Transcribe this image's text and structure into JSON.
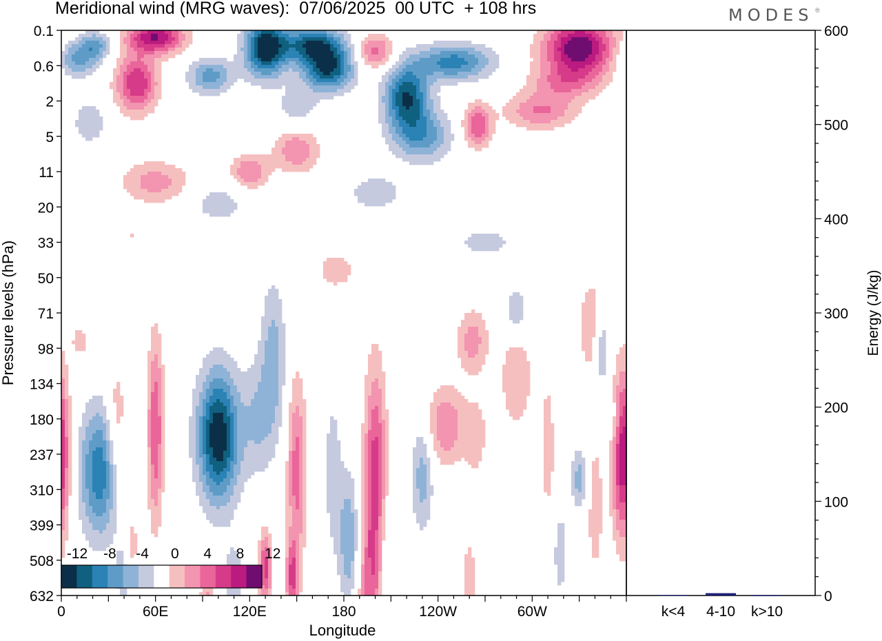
{
  "header": {
    "title": "Meridional wind (MRG waves):  07/06/2025  00 UTC  + 108 hrs",
    "brand": "MODES",
    "brand_mark": "®"
  },
  "chart_data": [
    {
      "type": "heatmap",
      "title": "Meridional wind (MRG waves):  07/06/2025  00 UTC  + 108 hrs",
      "xlabel": "Longitude",
      "ylabel": "Pressure levels (hPa)",
      "x_ticks": [
        "0",
        "60E",
        "120E",
        "180",
        "120W",
        "60W"
      ],
      "x_tick_degrees": [
        0,
        60,
        120,
        180,
        240,
        300
      ],
      "xlim": [
        0,
        360
      ],
      "y_ticks": [
        "0.1",
        "0.6",
        "2",
        "5",
        "11",
        "20",
        "33",
        "50",
        "71",
        "98",
        "134",
        "180",
        "237",
        "310",
        "399",
        "508",
        "632"
      ],
      "y_axis": "pressure levels (hPa), top to bottom",
      "colorbar": {
        "labels": [
          "-12",
          "-8",
          "-4",
          "0",
          "4",
          "8",
          "12"
        ],
        "levels": [
          -14,
          -12,
          -10,
          -8,
          -6,
          -4,
          -2,
          2,
          4,
          6,
          8,
          10,
          12,
          14
        ],
        "colors": [
          "#0c2f49",
          "#10607f",
          "#2a82b5",
          "#5e9cc7",
          "#8fb3d7",
          "#c6cadf",
          "#ffffff",
          "#f6bfbf",
          "#f394b0",
          "#ea6599",
          "#d63b89",
          "#bb1a80",
          "#700d70"
        ],
        "placement": "bottom-left inset"
      },
      "features": [
        {
          "kind": "maximum",
          "lon": 48,
          "level": "0.6-2",
          "sign": "positive",
          "peak": 10
        },
        {
          "kind": "maximum",
          "lon": 330,
          "level": "0.1-0.6",
          "sign": "positive",
          "peak": 14
        },
        {
          "kind": "minimum",
          "lon": 130,
          "level": "0.1-0.6",
          "sign": "negative",
          "peak": -14
        },
        {
          "kind": "minimum",
          "lon": 100,
          "level": "134-310",
          "sign": "negative",
          "peak": -14
        },
        {
          "kind": "minimum",
          "lon": 25,
          "level": "180-399",
          "sign": "negative",
          "peak": -10
        },
        {
          "kind": "maximum",
          "lon": 200,
          "level": "134-632",
          "sign": "positive",
          "peak": 10
        },
        {
          "kind": "maximum",
          "lon": 358,
          "level": "134-399",
          "sign": "positive",
          "peak": 12
        }
      ]
    },
    {
      "type": "bar",
      "categories": [
        "k<4",
        "4-10",
        "k>10"
      ],
      "values": [
        0.6,
        2.5,
        0.2
      ],
      "ylabel": "Energy (J/kg)",
      "ylim": [
        0,
        600
      ],
      "y_ticks": [
        "0",
        "100",
        "200",
        "300",
        "400",
        "500",
        "600"
      ],
      "colors": [
        "#1f1f7a",
        "#1f1f7a",
        "#1f1f7a"
      ]
    }
  ],
  "colors": {
    "frame": "#000000",
    "bar": "#1f1f7a",
    "brand": "#555555"
  }
}
